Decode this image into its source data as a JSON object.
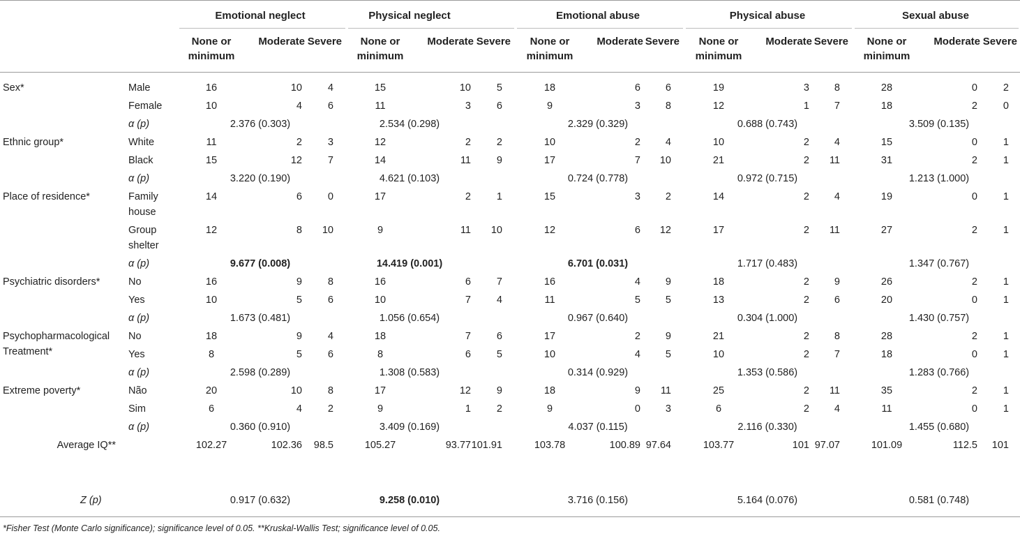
{
  "groups": [
    "Emotional neglect",
    "Physical neglect",
    "Emotional abuse",
    "Physical abuse",
    "Sexual abuse"
  ],
  "subheaders": [
    "None or\nminimum",
    "Moderate",
    "Severe"
  ],
  "sections": [
    {
      "label": "Sex*",
      "rows": [
        {
          "level": "Male",
          "values": [
            "16",
            "10",
            "4",
            "15",
            "10",
            "5",
            "18",
            "6",
            "6",
            "19",
            "3",
            "8",
            "28",
            "0",
            "2"
          ]
        },
        {
          "level": "Female",
          "values": [
            "10",
            "4",
            "6",
            "11",
            "3",
            "6",
            "9",
            "3",
            "8",
            "12",
            "1",
            "7",
            "18",
            "2",
            "0"
          ]
        }
      ],
      "stat_label": "α (p)",
      "stats": [
        "2.376 (0.303)",
        "2.534 (0.298)",
        "2.329 (0.329)",
        "0.688 (0.743)",
        "3.509 (0.135)"
      ],
      "stat_bold": [
        false,
        false,
        false,
        false,
        false
      ]
    },
    {
      "label": "Ethnic group*",
      "rows": [
        {
          "level": "White",
          "values": [
            "11",
            "2",
            "3",
            "12",
            "2",
            "2",
            "10",
            "2",
            "4",
            "10",
            "2",
            "4",
            "15",
            "0",
            "1"
          ]
        },
        {
          "level": "Black",
          "values": [
            "15",
            "12",
            "7",
            "14",
            "11",
            "9",
            "17",
            "7",
            "10",
            "21",
            "2",
            "11",
            "31",
            "2",
            "1"
          ]
        }
      ],
      "stat_label": "α (p)",
      "stats": [
        "3.220 (0.190)",
        "4.621 (0.103)",
        "0.724 (0.778)",
        "0.972 (0.715)",
        "1.213 (1.000)"
      ],
      "stat_bold": [
        false,
        false,
        false,
        false,
        false
      ]
    },
    {
      "label": "Place of residence*",
      "rows": [
        {
          "level": "Family\nhouse",
          "values": [
            "14",
            "6",
            "0",
            "17",
            "2",
            "1",
            "15",
            "3",
            "2",
            "14",
            "2",
            "4",
            "19",
            "0",
            "1"
          ]
        },
        {
          "level": "Group\nshelter",
          "values": [
            "12",
            "8",
            "10",
            "9",
            "11",
            "10",
            "12",
            "6",
            "12",
            "17",
            "2",
            "11",
            "27",
            "2",
            "1"
          ]
        }
      ],
      "stat_label": "α (p)",
      "stats": [
        "9.677 (0.008)",
        "14.419 (0.001)",
        "6.701 (0.031)",
        "1.717 (0.483)",
        "1.347 (0.767)"
      ],
      "stat_bold": [
        true,
        true,
        true,
        false,
        false
      ]
    },
    {
      "label": "Psychiatric disorders*",
      "rows": [
        {
          "level": "No",
          "values": [
            "16",
            "9",
            "8",
            "16",
            "6",
            "7",
            "16",
            "4",
            "9",
            "18",
            "2",
            "9",
            "26",
            "2",
            "1"
          ]
        },
        {
          "level": "Yes",
          "values": [
            "10",
            "5",
            "6",
            "10",
            "7",
            "4",
            "11",
            "5",
            "5",
            "13",
            "2",
            "6",
            "20",
            "0",
            "1"
          ]
        }
      ],
      "stat_label": "α (p)",
      "stats": [
        "1.673 (0.481)",
        "1.056 (0.654)",
        "0.967 (0.640)",
        "0.304 (1.000)",
        "1.430 (0.757)"
      ],
      "stat_bold": [
        false,
        false,
        false,
        false,
        false
      ]
    },
    {
      "label": "Psychopharmacological\nTreatment*",
      "rows": [
        {
          "level": "No",
          "values": [
            "18",
            "9",
            "4",
            "18",
            "7",
            "6",
            "17",
            "2",
            "9",
            "21",
            "2",
            "8",
            "28",
            "2",
            "1"
          ]
        },
        {
          "level": "Yes",
          "values": [
            "8",
            "5",
            "6",
            "8",
            "6",
            "5",
            "10",
            "4",
            "5",
            "10",
            "2",
            "7",
            "18",
            "0",
            "1"
          ]
        }
      ],
      "stat_label": "α (p)",
      "stats": [
        "2.598 (0.289)",
        "1.308 (0.583)",
        "0.314 (0.929)",
        "1.353 (0.586)",
        "1.283 (0.766)"
      ],
      "stat_bold": [
        false,
        false,
        false,
        false,
        false
      ]
    },
    {
      "label": "Extreme poverty*",
      "rows": [
        {
          "level": "Não",
          "values": [
            "20",
            "10",
            "8",
            "17",
            "12",
            "9",
            "18",
            "9",
            "11",
            "25",
            "2",
            "11",
            "35",
            "2",
            "1"
          ]
        },
        {
          "level": "Sim",
          "values": [
            "6",
            "4",
            "2",
            "9",
            "1",
            "2",
            "9",
            "0",
            "3",
            "6",
            "2",
            "4",
            "11",
            "0",
            "1"
          ]
        }
      ],
      "stat_label": "α (p)",
      "stats": [
        "0.360 (0.910)",
        "3.409 (0.169)",
        "4.037 (0.115)",
        "2.116 (0.330)",
        "1.455 (0.680)"
      ],
      "stat_bold": [
        false,
        false,
        false,
        false,
        false
      ]
    }
  ],
  "average_iq": {
    "label": "Average IQ**",
    "values": [
      "102.27",
      "102.36",
      "98.5",
      "105.27",
      "93.77",
      "101.91",
      "103.78",
      "100.89",
      "97.64",
      "103.77",
      "101",
      "97.07",
      "101.09",
      "112.5",
      "101"
    ]
  },
  "z": {
    "label": "Z (p)",
    "stats": [
      "0.917 (0.632)",
      "9.258 (0.010)",
      "3.716 (0.156)",
      "5.164 (0.076)",
      "0.581 (0.748)"
    ],
    "bold": [
      false,
      true,
      false,
      false,
      false
    ]
  },
  "footnote": "*Fisher Test (Monte Carlo significance); significance level of 0.05. **Kruskal-Wallis Test; significance level of 0.05."
}
